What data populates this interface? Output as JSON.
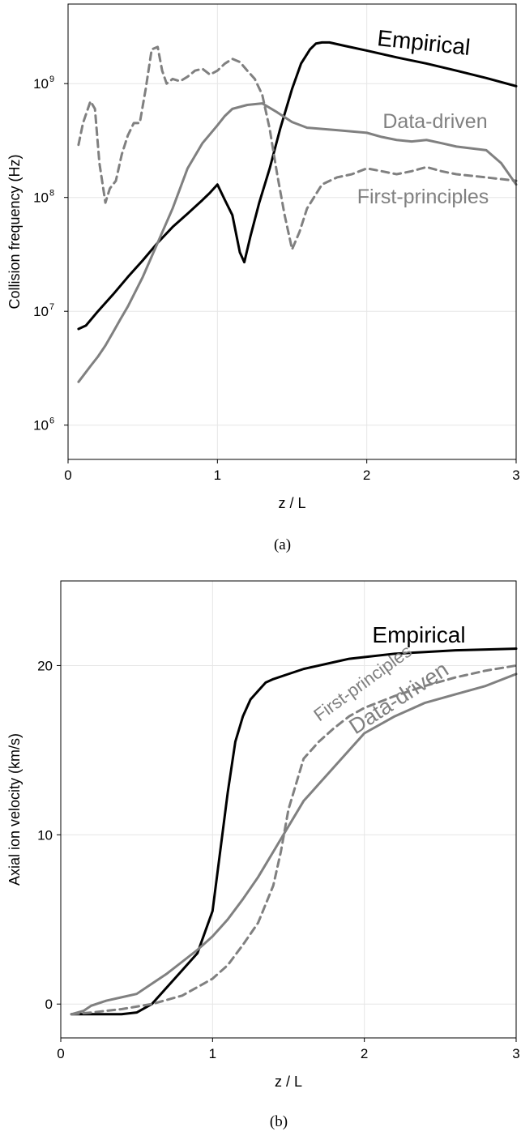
{
  "chart_data": [
    {
      "type": "line",
      "caption": "(a)",
      "xlabel": "z / L",
      "ylabel": "Collision frequency (Hz)",
      "xlim": [
        0,
        3
      ],
      "ylim": [
        500000,
        5000000000
      ],
      "yscale": "log",
      "grid": true,
      "xticks": [
        0,
        1,
        2,
        3
      ],
      "yticks": [
        {
          "value": 1000000,
          "base": "10",
          "exp": "6"
        },
        {
          "value": 10000000,
          "base": "10",
          "exp": "7"
        },
        {
          "value": 100000000,
          "base": "10",
          "exp": "8"
        },
        {
          "value": 1000000000,
          "base": "10",
          "exp": "9"
        }
      ],
      "series": [
        {
          "name": "Empirical",
          "color": "#000000",
          "dash": "solid",
          "x": [
            0.07,
            0.12,
            0.2,
            0.3,
            0.4,
            0.5,
            0.6,
            0.7,
            0.8,
            0.9,
            0.95,
            1.0,
            1.05,
            1.1,
            1.15,
            1.18,
            1.22,
            1.28,
            1.35,
            1.42,
            1.5,
            1.56,
            1.62,
            1.66,
            1.7,
            1.75,
            1.85,
            2.0,
            2.2,
            2.4,
            2.6,
            2.8,
            3.0
          ],
          "y": [
            7000000,
            7500000,
            10000000,
            14000000,
            20000000,
            28000000,
            40000000,
            55000000,
            72000000,
            95000000,
            110000000,
            130000000,
            95000000,
            70000000,
            33000000,
            27000000,
            45000000,
            90000000,
            180000000,
            400000000,
            900000000,
            1500000000,
            2000000000,
            2250000000,
            2300000000,
            2300000000,
            2150000000,
            1950000000,
            1700000000,
            1500000000,
            1300000000,
            1120000000,
            950000000
          ]
        },
        {
          "name": "Data-driven",
          "color": "#808080",
          "dash": "solid",
          "x": [
            0.07,
            0.1,
            0.15,
            0.2,
            0.25,
            0.3,
            0.35,
            0.4,
            0.5,
            0.6,
            0.7,
            0.8,
            0.9,
            1.0,
            1.05,
            1.1,
            1.2,
            1.3,
            1.4,
            1.5,
            1.6,
            1.7,
            1.8,
            1.9,
            2.0,
            2.1,
            2.2,
            2.3,
            2.4,
            2.5,
            2.6,
            2.7,
            2.8,
            2.9,
            3.0
          ],
          "y": [
            2400000,
            2700000,
            3300000,
            4000000,
            5000000,
            6500000,
            8500000,
            11000000,
            20000000,
            40000000,
            80000000,
            180000000,
            300000000,
            430000000,
            520000000,
            600000000,
            650000000,
            670000000,
            560000000,
            460000000,
            410000000,
            400000000,
            390000000,
            380000000,
            370000000,
            340000000,
            320000000,
            310000000,
            320000000,
            300000000,
            280000000,
            270000000,
            260000000,
            200000000,
            130000000
          ]
        },
        {
          "name": "First-principles",
          "color": "#808080",
          "dash": "dashed",
          "x": [
            0.07,
            0.1,
            0.15,
            0.18,
            0.21,
            0.25,
            0.28,
            0.32,
            0.36,
            0.4,
            0.44,
            0.48,
            0.52,
            0.56,
            0.6,
            0.63,
            0.66,
            0.7,
            0.75,
            0.8,
            0.85,
            0.9,
            0.95,
            1.0,
            1.05,
            1.1,
            1.15,
            1.2,
            1.25,
            1.3,
            1.35,
            1.4,
            1.45,
            1.5,
            1.55,
            1.6,
            1.7,
            1.8,
            1.9,
            2.0,
            2.1,
            2.2,
            2.3,
            2.4,
            2.5,
            2.6,
            2.7,
            2.8,
            2.9,
            3.0
          ],
          "y": [
            290000000,
            450000000,
            700000000,
            600000000,
            200000000,
            90000000,
            120000000,
            140000000,
            240000000,
            350000000,
            450000000,
            450000000,
            900000000,
            2000000000,
            2100000000,
            1300000000,
            1000000000,
            1100000000,
            1050000000,
            1150000000,
            1300000000,
            1350000000,
            1200000000,
            1300000000,
            1500000000,
            1650000000,
            1550000000,
            1300000000,
            1100000000,
            800000000,
            400000000,
            160000000,
            70000000,
            35000000,
            50000000,
            80000000,
            130000000,
            150000000,
            160000000,
            180000000,
            170000000,
            160000000,
            170000000,
            185000000,
            170000000,
            160000000,
            155000000,
            150000000,
            145000000,
            140000000
          ]
        }
      ]
    },
    {
      "type": "line",
      "caption": "(b)",
      "xlabel": "z / L",
      "ylabel": "Axial ion velocity (km/s)",
      "xlim": [
        0,
        3
      ],
      "ylim": [
        -2,
        25
      ],
      "yscale": "linear",
      "grid": true,
      "xticks": [
        0,
        1,
        2,
        3
      ],
      "yticks": [
        0,
        10,
        20
      ],
      "series": [
        {
          "name": "Empirical",
          "color": "#000000",
          "dash": "solid",
          "x": [
            0.07,
            0.2,
            0.3,
            0.4,
            0.5,
            0.6,
            0.7,
            0.8,
            0.9,
            1.0,
            1.05,
            1.1,
            1.15,
            1.2,
            1.25,
            1.3,
            1.35,
            1.4,
            1.5,
            1.6,
            1.7,
            1.8,
            1.9,
            2.0,
            2.2,
            2.4,
            2.6,
            2.8,
            3.0
          ],
          "y": [
            -0.6,
            -0.6,
            -0.6,
            -0.6,
            -0.5,
            0.0,
            1.0,
            2.0,
            3.0,
            5.5,
            9.0,
            12.5,
            15.5,
            17.0,
            18.0,
            18.5,
            19.0,
            19.2,
            19.5,
            19.8,
            20.0,
            20.2,
            20.4,
            20.5,
            20.7,
            20.8,
            20.9,
            20.95,
            21.0
          ]
        },
        {
          "name": "Data-driven",
          "color": "#808080",
          "dash": "solid",
          "x": [
            0.07,
            0.15,
            0.2,
            0.3,
            0.4,
            0.5,
            0.6,
            0.7,
            0.8,
            0.9,
            1.0,
            1.1,
            1.2,
            1.3,
            1.4,
            1.5,
            1.6,
            1.7,
            1.8,
            1.9,
            2.0,
            2.2,
            2.4,
            2.6,
            2.8,
            3.0
          ],
          "y": [
            -0.6,
            -0.4,
            -0.1,
            0.2,
            0.4,
            0.6,
            1.2,
            1.8,
            2.5,
            3.2,
            4.0,
            5.0,
            6.2,
            7.5,
            9.0,
            10.5,
            12.0,
            13.0,
            14.0,
            15.0,
            16.0,
            17.0,
            17.8,
            18.3,
            18.8,
            19.5
          ]
        },
        {
          "name": "First-principles",
          "color": "#808080",
          "dash": "dashed",
          "x": [
            0.07,
            0.2,
            0.4,
            0.6,
            0.8,
            1.0,
            1.1,
            1.2,
            1.3,
            1.4,
            1.45,
            1.5,
            1.55,
            1.6,
            1.7,
            1.8,
            1.9,
            2.0,
            2.2,
            2.4,
            2.6,
            2.8,
            3.0
          ],
          "y": [
            -0.6,
            -0.5,
            -0.3,
            0.0,
            0.5,
            1.5,
            2.3,
            3.5,
            4.8,
            7.0,
            9.0,
            11.5,
            13.0,
            14.5,
            15.5,
            16.3,
            17.0,
            17.5,
            18.2,
            18.8,
            19.3,
            19.7,
            20.0
          ]
        }
      ]
    }
  ]
}
